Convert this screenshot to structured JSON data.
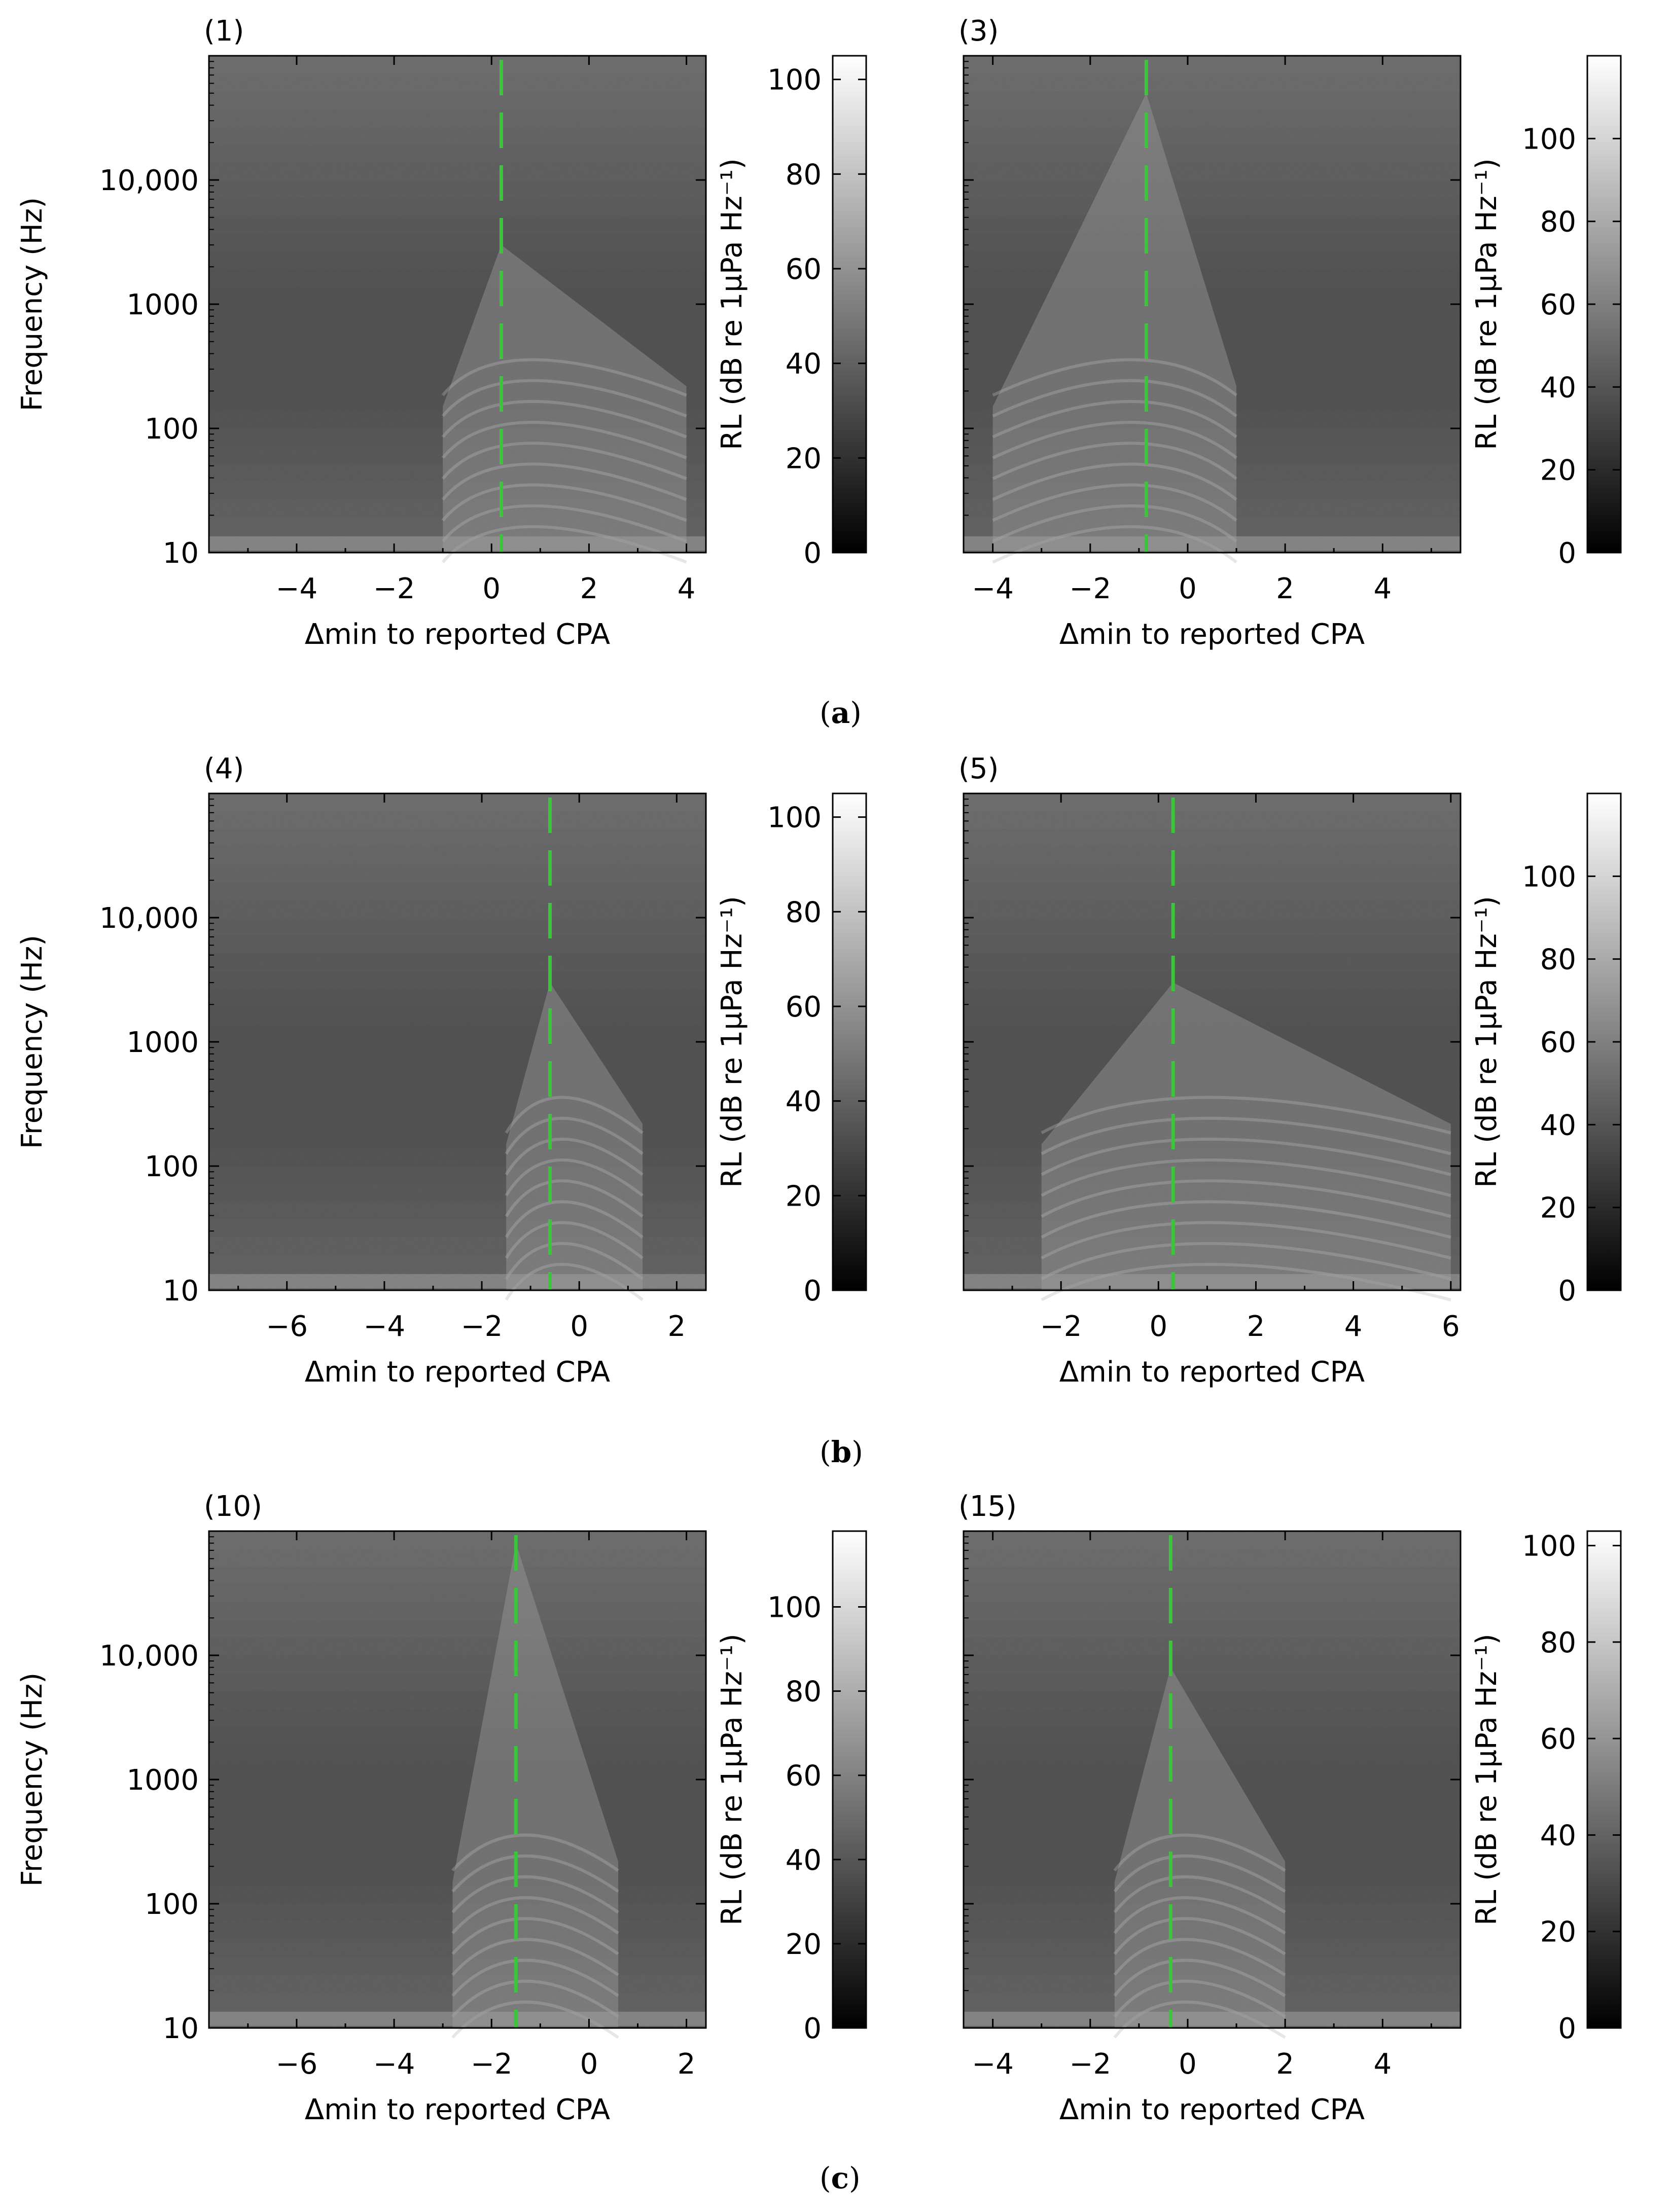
{
  "colors": {
    "cpa_line": "#3cc43c",
    "colormap_low": "#000000",
    "colormap_high": "#ffffff"
  },
  "groups": [
    {
      "label": "a"
    },
    {
      "label": "b"
    },
    {
      "label": "c"
    }
  ],
  "chart_data": [
    {
      "type": "heatmap",
      "title": "(1)",
      "xlabel": "Δmin to reported CPA",
      "ylabel": "Frequency (Hz)",
      "xlim": [
        -5.8,
        4.4
      ],
      "xticks": [
        -4,
        -2,
        0,
        2,
        4
      ],
      "x_tick_labels": [
        "−4",
        "−2",
        "0",
        "2",
        "4"
      ],
      "y_scale": "log",
      "ylim": [
        10,
        100000
      ],
      "yticks": [
        10,
        100,
        1000,
        10000
      ],
      "y_tick_labels": [
        "10",
        "100",
        "1000",
        "10,000"
      ],
      "cpa_marker": 0.2,
      "ship_signal": {
        "start": -1.0,
        "end": 4.0,
        "peak_frequency": 3000
      },
      "colorbar": {
        "label": "RL (dB re 1µPa Hz⁻¹)",
        "range": [
          0,
          105
        ],
        "ticks": [
          0,
          20,
          40,
          60,
          80,
          100
        ]
      }
    },
    {
      "type": "heatmap",
      "title": "(3)",
      "xlabel": "Δmin to reported CPA",
      "ylabel": "",
      "xlim": [
        -4.6,
        5.6
      ],
      "xticks": [
        -4,
        -2,
        0,
        2,
        4
      ],
      "x_tick_labels": [
        "−4",
        "−2",
        "0",
        "2",
        "4"
      ],
      "y_scale": "log",
      "ylim": [
        10,
        100000
      ],
      "yticks": [
        10,
        100,
        1000,
        10000
      ],
      "y_tick_labels": [
        "",
        "",
        "",
        ""
      ],
      "cpa_marker": -0.85,
      "ship_signal": {
        "start": -4.0,
        "end": 1.0,
        "peak_frequency": 50000
      },
      "colorbar": {
        "label": "RL (dB re 1µPa Hz⁻¹)",
        "range": [
          0,
          120
        ],
        "ticks": [
          0,
          20,
          40,
          60,
          80,
          100
        ]
      }
    },
    {
      "type": "heatmap",
      "title": "(4)",
      "xlabel": "Δmin to reported CPA",
      "ylabel": "Frequency (Hz)",
      "xlim": [
        -7.6,
        2.6
      ],
      "xticks": [
        -6,
        -4,
        -2,
        0,
        2
      ],
      "x_tick_labels": [
        "−6",
        "−4",
        "−2",
        "0",
        "2"
      ],
      "y_scale": "log",
      "ylim": [
        10,
        100000
      ],
      "yticks": [
        10,
        100,
        1000,
        10000
      ],
      "y_tick_labels": [
        "10",
        "100",
        "1000",
        "10,000"
      ],
      "cpa_marker": -0.6,
      "ship_signal": {
        "start": -1.5,
        "end": 1.3,
        "peak_frequency": 3000
      },
      "colorbar": {
        "label": "RL (dB re 1µPa Hz⁻¹)",
        "range": [
          0,
          105
        ],
        "ticks": [
          0,
          20,
          40,
          60,
          80,
          100
        ]
      }
    },
    {
      "type": "heatmap",
      "title": "(5)",
      "xlabel": "Δmin to reported CPA",
      "ylabel": "",
      "xlim": [
        -4.0,
        6.2
      ],
      "xticks": [
        -2,
        0,
        2,
        4,
        6
      ],
      "x_tick_labels": [
        "−2",
        "0",
        "2",
        "4",
        "6"
      ],
      "y_scale": "log",
      "ylim": [
        10,
        100000
      ],
      "yticks": [
        10,
        100,
        1000,
        10000
      ],
      "y_tick_labels": [
        "",
        "",
        "",
        ""
      ],
      "cpa_marker": 0.3,
      "ship_signal": {
        "start": -2.4,
        "end": 6.0,
        "peak_frequency": 3000
      },
      "colorbar": {
        "label": "RL (dB re 1µPa Hz⁻¹)",
        "range": [
          0,
          120
        ],
        "ticks": [
          0,
          20,
          40,
          60,
          80,
          100
        ]
      }
    },
    {
      "type": "heatmap",
      "title": "(10)",
      "xlabel": "Δmin to reported CPA",
      "ylabel": "Frequency (Hz)",
      "xlim": [
        -7.8,
        2.4
      ],
      "xticks": [
        -6,
        -4,
        -2,
        0,
        2
      ],
      "x_tick_labels": [
        "−6",
        "−4",
        "−2",
        "0",
        "2"
      ],
      "y_scale": "log",
      "ylim": [
        10,
        100000
      ],
      "yticks": [
        10,
        100,
        1000,
        10000
      ],
      "y_tick_labels": [
        "10",
        "100",
        "1000",
        "10,000"
      ],
      "cpa_marker": -1.5,
      "ship_signal": {
        "start": -2.8,
        "end": 0.6,
        "peak_frequency": 80000
      },
      "colorbar": {
        "label": "RL (dB re 1µPa Hz⁻¹)",
        "range": [
          0,
          118
        ],
        "ticks": [
          0,
          20,
          40,
          60,
          80,
          100
        ]
      }
    },
    {
      "type": "heatmap",
      "title": "(15)",
      "xlabel": "Δmin to reported CPA",
      "ylabel": "",
      "xlim": [
        -4.6,
        5.6
      ],
      "xticks": [
        -4,
        -2,
        0,
        2,
        4
      ],
      "x_tick_labels": [
        "−4",
        "−2",
        "0",
        "2",
        "4"
      ],
      "y_scale": "log",
      "ylim": [
        10,
        100000
      ],
      "yticks": [
        10,
        100,
        1000,
        10000
      ],
      "y_tick_labels": [
        "",
        "",
        "",
        ""
      ],
      "cpa_marker": -0.35,
      "ship_signal": {
        "start": -1.5,
        "end": 2.0,
        "peak_frequency": 8000
      },
      "colorbar": {
        "label": "RL (dB re 1µPa Hz⁻¹)",
        "range": [
          0,
          103
        ],
        "ticks": [
          0,
          20,
          40,
          60,
          80,
          100
        ]
      }
    }
  ]
}
